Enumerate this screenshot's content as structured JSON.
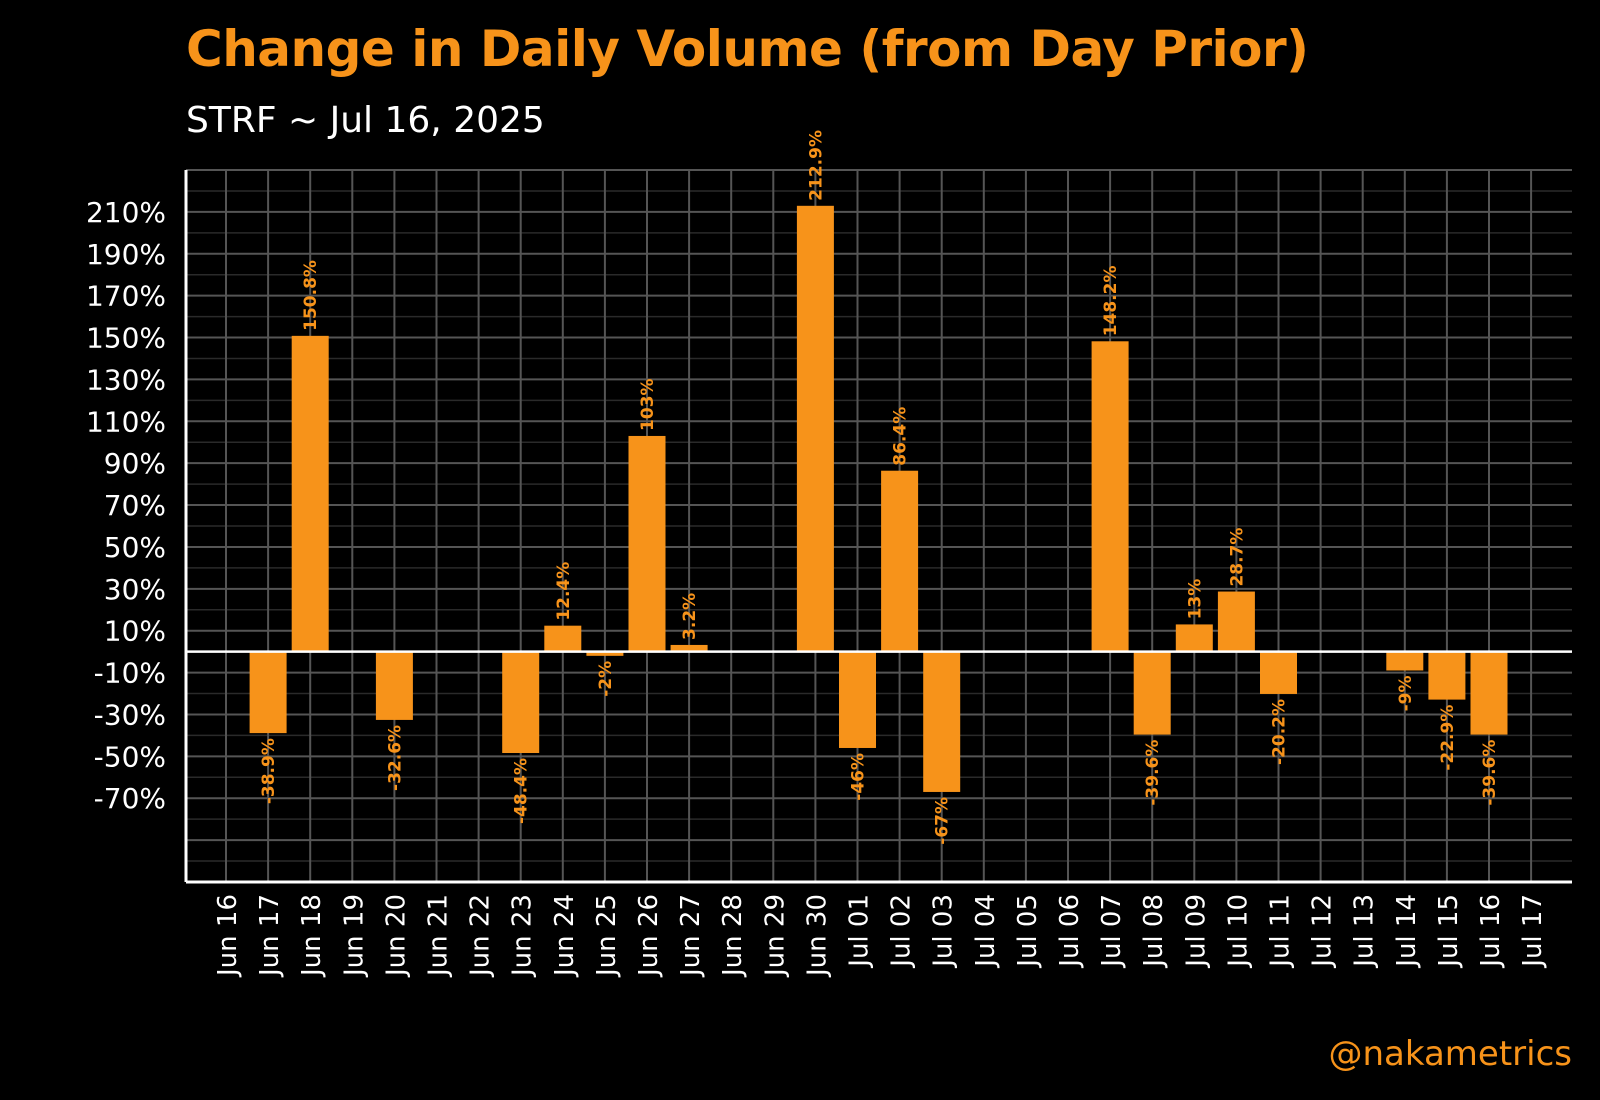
{
  "title": "Change in Daily Volume (from Day Prior)",
  "subtitle": "STRF ~ Jul 16, 2025",
  "watermark": "@nakametrics",
  "colors": {
    "background": "#000000",
    "accent": "#f7931a",
    "bar": "#f7931a",
    "grid_major": "#555555",
    "grid_minor": "#2a2a2a",
    "axis": "#ffffff"
  },
  "chart_data": {
    "type": "bar",
    "ylim": [
      -110,
      230
    ],
    "grid": true,
    "yticks": [
      210,
      190,
      170,
      150,
      130,
      110,
      90,
      70,
      50,
      30,
      10,
      -10,
      -30,
      -50,
      -70
    ],
    "ytick_labels": [
      "210%",
      "190%",
      "170%",
      "150%",
      "130%",
      "110%",
      "90%",
      "70%",
      "50%",
      "30%",
      "10%",
      "-10%",
      "-30%",
      "-50%",
      "-70%"
    ],
    "categories": [
      "Jun 16",
      "Jun 17",
      "Jun 18",
      "Jun 19",
      "Jun 20",
      "Jun 21",
      "Jun 22",
      "Jun 23",
      "Jun 24",
      "Jun 25",
      "Jun 26",
      "Jun 27",
      "Jun 28",
      "Jun 29",
      "Jun 30",
      "Jul 01",
      "Jul 02",
      "Jul 03",
      "Jul 04",
      "Jul 05",
      "Jul 06",
      "Jul 07",
      "Jul 08",
      "Jul 09",
      "Jul 10",
      "Jul 11",
      "Jul 12",
      "Jul 13",
      "Jul 14",
      "Jul 15",
      "Jul 16",
      "Jul 17"
    ],
    "values": [
      null,
      -38.9,
      150.8,
      null,
      -32.6,
      null,
      null,
      -48.4,
      12.4,
      -2,
      103,
      3.2,
      null,
      null,
      212.9,
      -46,
      86.4,
      -67,
      null,
      null,
      null,
      148.2,
      -39.6,
      13,
      28.7,
      -20.2,
      null,
      null,
      -9,
      -22.9,
      -39.6,
      null
    ],
    "labels": [
      "",
      "-38.9%",
      "150.8%",
      "",
      "-32.6%",
      "",
      "",
      "-48.4%",
      "12.4%",
      "-2%",
      "103%",
      "3.2%",
      "",
      "",
      "212.9%",
      "-46%",
      "86.4%",
      "-67%",
      "",
      "",
      "",
      "148.2%",
      "-39.6%",
      "13%",
      "28.7%",
      "-20.2%",
      "",
      "",
      "-9%",
      "-22.9%",
      "-39.6%",
      ""
    ]
  }
}
